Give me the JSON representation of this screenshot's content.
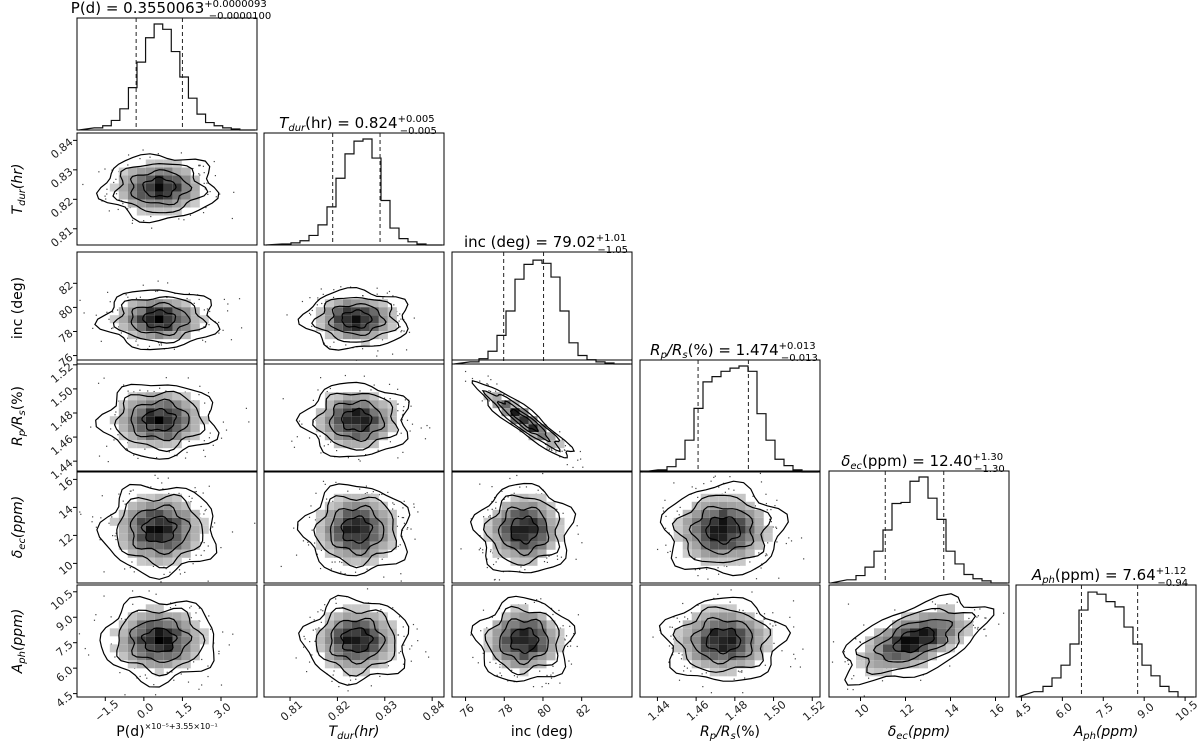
{
  "chart_data": {
    "type": "corner",
    "parameters": [
      {
        "key": "P",
        "axis_label": "P(d)",
        "axis_label_sub": "",
        "axis_label_tail": "",
        "axis_offset_label": "×10⁻⁵+3.55×10⁻¹",
        "title_main": "P(d) = 0.3550063",
        "title_sup": "+0.0000093",
        "title_sub": "−0.0000100",
        "range": [
          -2.6,
          4.4
        ],
        "tick_values": [
          -1.5,
          0.0,
          1.5,
          3.0
        ],
        "tick_labels": [
          "−1.5",
          "0.0",
          "1.5",
          "3.0"
        ],
        "hist_edges": [
          -2.6,
          4.4
        ],
        "hist_counts": [
          0.02,
          0.04,
          0.09,
          0.2,
          0.4,
          0.64,
          0.87,
          1.0,
          0.95,
          0.74,
          0.5,
          0.3,
          0.15,
          0.07,
          0.04,
          0.02,
          0.01
        ],
        "quantiles": [
          -0.3,
          1.5
        ],
        "median": 0.6,
        "std": 0.9
      },
      {
        "key": "T",
        "axis_label": "T",
        "axis_label_sub": "dur",
        "axis_label_tail": "(hr)",
        "axis_offset_label": "",
        "title_main": "T",
        "title_sub_var": "dur",
        "title_rest": "(hr) = 0.824",
        "title_sup": "+0.005",
        "title_sub": "−0.005",
        "range": [
          0.8045,
          0.8425
        ],
        "tick_values": [
          0.81,
          0.82,
          0.83,
          0.84
        ],
        "tick_labels": [
          "0.81",
          "0.82",
          "0.83",
          "0.84"
        ],
        "hist_counts": [
          0.01,
          0.02,
          0.04,
          0.09,
          0.19,
          0.36,
          0.63,
          0.86,
          0.98,
          1.0,
          0.82,
          0.42,
          0.16,
          0.06,
          0.03,
          0.01
        ],
        "quantiles": [
          0.819,
          0.829
        ],
        "median": 0.824,
        "std": 0.0045
      },
      {
        "key": "inc",
        "axis_label": "inc (deg)",
        "axis_label_sub": "",
        "axis_label_tail": "",
        "axis_offset_label": "",
        "title_main": "inc (deg) = 79.02",
        "title_sup": "+1.01",
        "title_sub": "−1.05",
        "range": [
          75.3,
          84.6
        ],
        "tick_values": [
          76,
          78,
          80,
          82
        ],
        "tick_labels": [
          "76",
          "78",
          "80",
          "82"
        ],
        "hist_counts": [
          0.02,
          0.05,
          0.12,
          0.27,
          0.5,
          0.8,
          0.94,
          0.98,
          0.95,
          0.82,
          0.5,
          0.2,
          0.08,
          0.04,
          0.02,
          0.01
        ],
        "quantiles": [
          77.97,
          80.03
        ],
        "median": 79.02,
        "std": 1.0
      },
      {
        "key": "Rp",
        "axis_label": "R",
        "axis_label_sub": "p",
        "axis_label_tail": "/R",
        "axis_label_sub2": "s",
        "axis_label_tail2": "(%)",
        "axis_offset_label": "",
        "title_main": "R",
        "title_sub_var": "p",
        "title_mid": "/R",
        "title_sub_var2": "s",
        "title_rest": "(%) = 1.474",
        "title_sup": "+0.013",
        "title_sub": "−0.013",
        "range": [
          1.431,
          1.524
        ],
        "tick_values": [
          1.44,
          1.46,
          1.48,
          1.5,
          1.52
        ],
        "tick_labels": [
          "1.44",
          "1.46",
          "1.48",
          "1.50",
          "1.52"
        ],
        "hist_counts": [
          0.02,
          0.05,
          0.12,
          0.3,
          0.6,
          0.85,
          0.9,
          0.95,
          0.98,
          1.0,
          0.95,
          0.55,
          0.3,
          0.12,
          0.06,
          0.02
        ],
        "quantiles": [
          1.461,
          1.487
        ],
        "median": 1.474,
        "std": 0.0125
      },
      {
        "key": "dec",
        "axis_label": "δ",
        "axis_label_sub": "ec",
        "axis_label_tail": "(ppm)",
        "axis_offset_label": "",
        "title_main": "δ",
        "title_sub_var": "ec",
        "title_rest": "(ppm) = 12.40",
        "title_sup": "+1.30",
        "title_sub": "−1.30",
        "range": [
          8.6,
          16.6
        ],
        "tick_values": [
          10,
          12,
          14,
          16
        ],
        "tick_labels": [
          "10",
          "12",
          "14",
          "16"
        ],
        "hist_counts": [
          0.03,
          0.07,
          0.15,
          0.3,
          0.5,
          0.75,
          0.76,
          0.96,
          1.0,
          0.8,
          0.6,
          0.3,
          0.18,
          0.08,
          0.04,
          0.02
        ],
        "quantiles": [
          11.1,
          13.7
        ],
        "median": 12.4,
        "std": 1.3
      },
      {
        "key": "Aph",
        "axis_label": "A",
        "axis_label_sub": "ph",
        "axis_label_tail": "(ppm)",
        "axis_offset_label": "",
        "title_main": "A",
        "title_sub_var": "ph",
        "title_rest": "(ppm) = 7.64",
        "title_sup": "+1.12",
        "title_sub": "−0.94",
        "range": [
          4.3,
          10.9
        ],
        "tick_values": [
          4.5,
          6.0,
          7.5,
          9.0,
          10.5
        ],
        "tick_labels": [
          "4.5",
          "6.0",
          "7.5",
          "9.0",
          "10.5"
        ],
        "hist_counts": [
          0.05,
          0.1,
          0.18,
          0.3,
          0.5,
          0.82,
          0.99,
          0.97,
          0.9,
          0.85,
          0.66,
          0.5,
          0.3,
          0.2,
          0.1,
          0.05
        ],
        "quantiles": [
          6.7,
          8.76
        ],
        "median": 7.64,
        "std": 1.0
      }
    ],
    "correlations": {
      "inc|Rp": -0.92,
      "dec|Aph": 0.55
    },
    "grid": false,
    "colors": {
      "line": "#000000",
      "scatter": "#000000"
    }
  }
}
